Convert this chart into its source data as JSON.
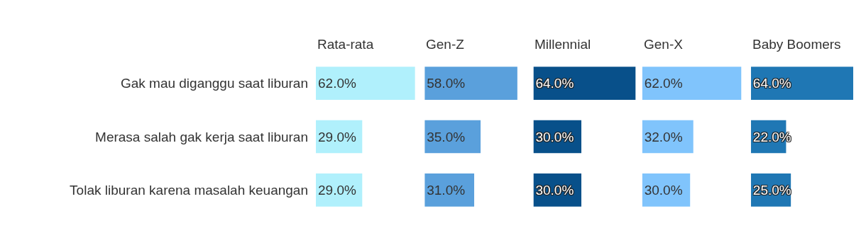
{
  "chart_data": [
    {
      "type": "bar",
      "orientation": "horizontal",
      "title": "Rata-rata",
      "categories": [
        "Gak mau diganggu saat liburan",
        "Merasa salah gak kerja saat liburan",
        "Tolak liburan karena masalah keuangan"
      ],
      "series": [
        {
          "color": "#b0f0fc",
          "values": [
            62.0,
            29.0,
            29.0
          ],
          "value_labels": [
            "62.0%",
            "29.0%",
            "29.0%"
          ]
        }
      ],
      "tick_labels": "y"
    },
    {
      "type": "bar",
      "orientation": "horizontal",
      "title": "Gen-Z",
      "categories": [
        null,
        null,
        null
      ],
      "series": [
        {
          "color": "#5aa0dc",
          "values": [
            58.0,
            35.0,
            31.0
          ],
          "value_labels": [
            "58.0%",
            "35.0%",
            "31.0%"
          ]
        }
      ],
      "tick_labels": false
    },
    {
      "type": "bar",
      "orientation": "horizontal",
      "title": "Millennial",
      "categories": [
        null,
        null,
        null
      ],
      "series": [
        {
          "color": "#08508a",
          "values": [
            64.0,
            30.0,
            30.0
          ],
          "value_labels": [
            "64.0%",
            "30.0%",
            "30.0%"
          ]
        }
      ],
      "tick_labels": false
    },
    {
      "type": "bar",
      "orientation": "horizontal",
      "title": "Gen-X",
      "categories": [
        null,
        null,
        null
      ],
      "series": [
        {
          "color": "#80c4fc",
          "values": [
            62.0,
            32.0,
            30.0
          ],
          "value_labels": [
            "62.0%",
            "32.0%",
            "30.0%"
          ]
        }
      ],
      "tick_labels": false
    },
    {
      "type": "bar",
      "orientation": "horizontal",
      "title": "Baby Boomers",
      "categories": [
        null,
        null,
        null
      ],
      "series": [
        {
          "color": "#1f77b4",
          "values": [
            64.0,
            22.0,
            25.0
          ],
          "value_labels": [
            "64.0%",
            "22.0%",
            "25.0%"
          ]
        }
      ],
      "tick_labels": false
    }
  ]
}
